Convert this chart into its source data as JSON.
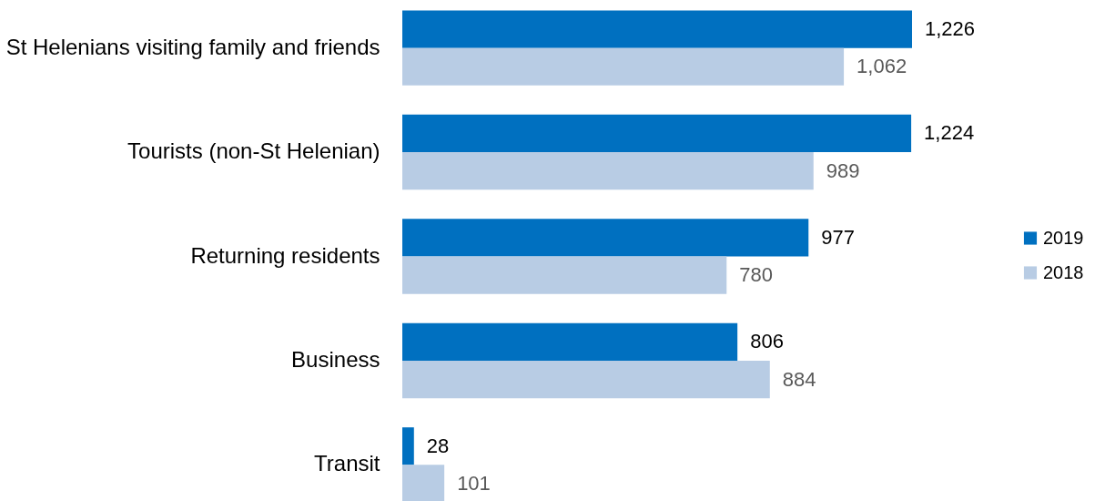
{
  "chart_data": {
    "type": "bar",
    "orientation": "horizontal",
    "categories": [
      "St Helenians visiting family and friends",
      "Tourists (non-St Helenian)",
      "Returning residents",
      "Business",
      "Transit"
    ],
    "series": [
      {
        "name": "2019",
        "color": "#0070c0",
        "values": [
          1226,
          1224,
          977,
          806,
          28
        ],
        "value_labels": [
          "1,226",
          "1,224",
          "977",
          "806",
          "28"
        ]
      },
      {
        "name": "2018",
        "color": "#b8cce4",
        "values": [
          1062,
          989,
          780,
          884,
          101
        ],
        "value_labels": [
          "1,062",
          "989",
          "780",
          "884",
          "101"
        ]
      }
    ],
    "legend": "right",
    "tick_labels": "y"
  }
}
